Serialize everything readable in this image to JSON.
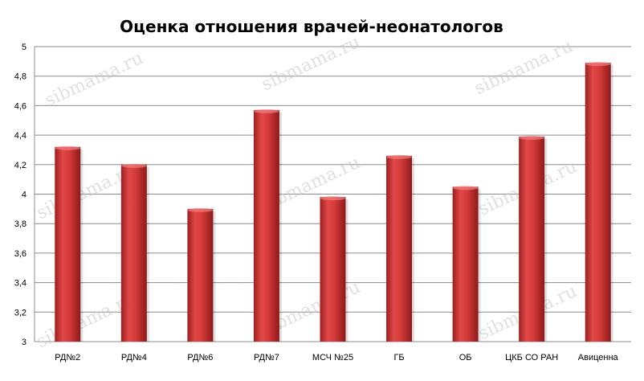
{
  "chart_data": {
    "type": "bar",
    "title": "Оценка отношения врачей-неонатологов",
    "xlabel": "",
    "ylabel": "",
    "categories": [
      "РД№2",
      "РД№4",
      "РД№6",
      "РД№7",
      "МСЧ №25",
      "ГБ",
      "ОБ",
      "ЦКБ СО РАН",
      "Авиценна"
    ],
    "values": [
      4.32,
      4.2,
      3.9,
      4.57,
      3.98,
      4.26,
      4.05,
      4.39,
      4.89
    ],
    "ylim": [
      3,
      5
    ],
    "yticks": [
      "3",
      "3,2",
      "3,4",
      "3,6",
      "3,8",
      "4",
      "4,2",
      "4,4",
      "4,6",
      "4,8",
      "5"
    ],
    "grid": true,
    "legend": "none",
    "bar_color": "#d63b3b"
  },
  "watermark": "sibmama.ru"
}
